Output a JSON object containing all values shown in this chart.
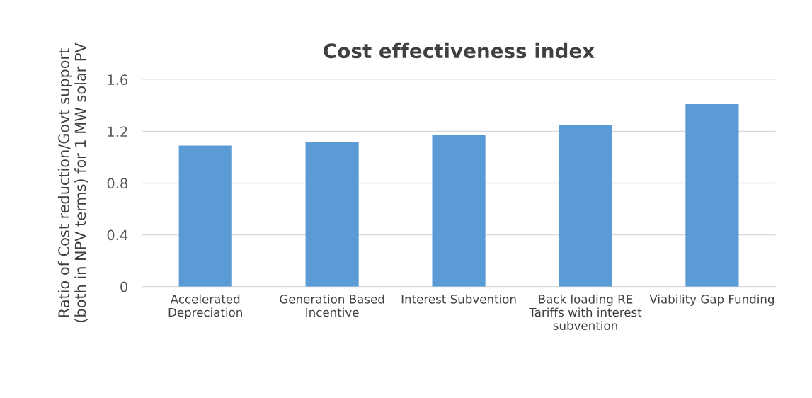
{
  "chart_data": {
    "type": "bar",
    "title": "Cost effectiveness index",
    "ylabel": "Ratio of Cost reduction/Govt support\n(both in NPV terms) for 1 MW solar PV",
    "categories": [
      "Accelerated\nDepreciation",
      "Generation Based\nIncentive",
      "Interest Subvention",
      "Back loading RE\nTariffs with interest\nsubvention",
      "Viability Gap Funding"
    ],
    "values": [
      1.09,
      1.12,
      1.17,
      1.25,
      1.41
    ],
    "color": "#5b9bd5",
    "ylim": [
      0,
      1.6
    ],
    "yticks": [
      0,
      0.4,
      0.8,
      1.2,
      1.6
    ],
    "grid": "y",
    "legend": false
  }
}
